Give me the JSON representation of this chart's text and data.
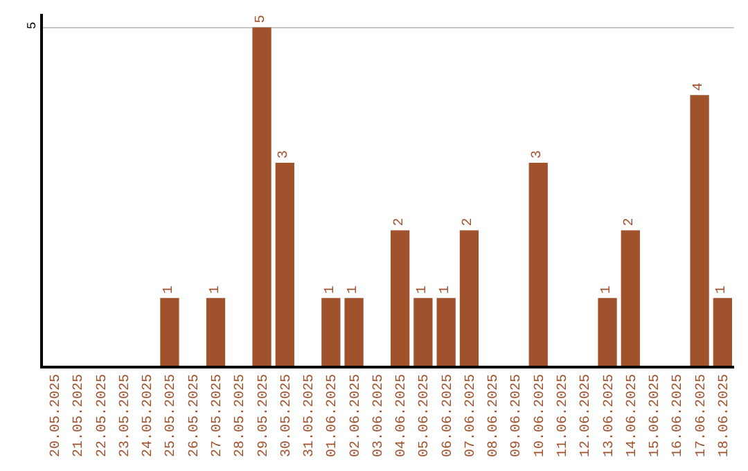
{
  "chart_data": {
    "type": "bar",
    "categories": [
      "20.05.2025",
      "21.05.2025",
      "22.05.2025",
      "23.05.2025",
      "24.05.2025",
      "25.05.2025",
      "26.05.2025",
      "27.05.2025",
      "28.05.2025",
      "29.05.2025",
      "30.05.2025",
      "31.05.2025",
      "01.06.2025",
      "02.06.2025",
      "03.06.2025",
      "04.06.2025",
      "05.06.2025",
      "06.06.2025",
      "07.06.2025",
      "08.06.2025",
      "09.06.2025",
      "10.06.2025",
      "11.06.2025",
      "12.06.2025",
      "13.06.2025",
      "14.06.2025",
      "15.06.2025",
      "16.06.2025",
      "17.06.2025",
      "18.06.2025"
    ],
    "values": [
      0,
      0,
      0,
      0,
      0,
      1,
      0,
      1,
      0,
      5,
      3,
      0,
      1,
      1,
      0,
      2,
      1,
      1,
      2,
      0,
      0,
      3,
      0,
      0,
      1,
      2,
      0,
      0,
      4,
      1
    ],
    "value_labels": [
      null,
      null,
      null,
      null,
      null,
      "1",
      null,
      "1",
      null,
      "5",
      "3",
      null,
      "1",
      "1",
      null,
      "2",
      "1",
      "1",
      "2",
      null,
      null,
      "3",
      null,
      null,
      "1",
      "2",
      null,
      null,
      "4",
      "1"
    ],
    "color": "#a0522d",
    "ylim": [
      0,
      5.2
    ],
    "yticks": [
      5
    ],
    "grid": "y",
    "legend": false
  }
}
